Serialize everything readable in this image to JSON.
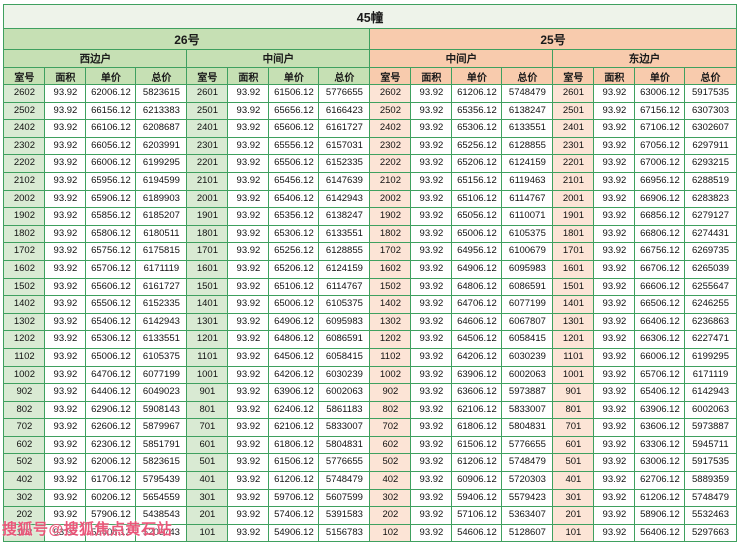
{
  "title": "45幢",
  "watermark": "搜狐号@搜狐焦点黄石站",
  "groups": [
    {
      "label": "26号",
      "units": [
        "西边户",
        "中间户"
      ]
    },
    {
      "label": "25号",
      "units": [
        "中间户",
        "东边户"
      ]
    }
  ],
  "columns": [
    "室号",
    "面积",
    "单价",
    "总价"
  ],
  "area": "93.92",
  "colors": {
    "border_green": "#3fa05f",
    "header_green": "#c6e0b4",
    "header_peach": "#f8cbad",
    "room_green": "#d9ead3",
    "room_peach": "#fce4d6",
    "watermark_pink": "#e94a70"
  },
  "rows": [
    [
      "2602",
      "93.92",
      "62006.12",
      "5823615",
      "2601",
      "93.92",
      "61506.12",
      "5776655",
      "2602",
      "93.92",
      "61206.12",
      "5748479",
      "2601",
      "93.92",
      "63006.12",
      "5917535"
    ],
    [
      "2502",
      "93.92",
      "66156.12",
      "6213383",
      "2501",
      "93.92",
      "65656.12",
      "6166423",
      "2502",
      "93.92",
      "65356.12",
      "6138247",
      "2501",
      "93.92",
      "67156.12",
      "6307303"
    ],
    [
      "2402",
      "93.92",
      "66106.12",
      "6208687",
      "2401",
      "93.92",
      "65606.12",
      "6161727",
      "2402",
      "93.92",
      "65306.12",
      "6133551",
      "2401",
      "93.92",
      "67106.12",
      "6302607"
    ],
    [
      "2302",
      "93.92",
      "66056.12",
      "6203991",
      "2301",
      "93.92",
      "65556.12",
      "6157031",
      "2302",
      "93.92",
      "65256.12",
      "6128855",
      "2301",
      "93.92",
      "67056.12",
      "6297911"
    ],
    [
      "2202",
      "93.92",
      "66006.12",
      "6199295",
      "2201",
      "93.92",
      "65506.12",
      "6152335",
      "2202",
      "93.92",
      "65206.12",
      "6124159",
      "2201",
      "93.92",
      "67006.12",
      "6293215"
    ],
    [
      "2102",
      "93.92",
      "65956.12",
      "6194599",
      "2101",
      "93.92",
      "65456.12",
      "6147639",
      "2102",
      "93.92",
      "65156.12",
      "6119463",
      "2101",
      "93.92",
      "66956.12",
      "6288519"
    ],
    [
      "2002",
      "93.92",
      "65906.12",
      "6189903",
      "2001",
      "93.92",
      "65406.12",
      "6142943",
      "2002",
      "93.92",
      "65106.12",
      "6114767",
      "2001",
      "93.92",
      "66906.12",
      "6283823"
    ],
    [
      "1902",
      "93.92",
      "65856.12",
      "6185207",
      "1901",
      "93.92",
      "65356.12",
      "6138247",
      "1902",
      "93.92",
      "65056.12",
      "6110071",
      "1901",
      "93.92",
      "66856.12",
      "6279127"
    ],
    [
      "1802",
      "93.92",
      "65806.12",
      "6180511",
      "1801",
      "93.92",
      "65306.12",
      "6133551",
      "1802",
      "93.92",
      "65006.12",
      "6105375",
      "1801",
      "93.92",
      "66806.12",
      "6274431"
    ],
    [
      "1702",
      "93.92",
      "65756.12",
      "6175815",
      "1701",
      "93.92",
      "65256.12",
      "6128855",
      "1702",
      "93.92",
      "64956.12",
      "6100679",
      "1701",
      "93.92",
      "66756.12",
      "6269735"
    ],
    [
      "1602",
      "93.92",
      "65706.12",
      "6171119",
      "1601",
      "93.92",
      "65206.12",
      "6124159",
      "1602",
      "93.92",
      "64906.12",
      "6095983",
      "1601",
      "93.92",
      "66706.12",
      "6265039"
    ],
    [
      "1502",
      "93.92",
      "65606.12",
      "6161727",
      "1501",
      "93.92",
      "65106.12",
      "6114767",
      "1502",
      "93.92",
      "64806.12",
      "6086591",
      "1501",
      "93.92",
      "66606.12",
      "6255647"
    ],
    [
      "1402",
      "93.92",
      "65506.12",
      "6152335",
      "1401",
      "93.92",
      "65006.12",
      "6105375",
      "1402",
      "93.92",
      "64706.12",
      "6077199",
      "1401",
      "93.92",
      "66506.12",
      "6246255"
    ],
    [
      "1302",
      "93.92",
      "65406.12",
      "6142943",
      "1301",
      "93.92",
      "64906.12",
      "6095983",
      "1302",
      "93.92",
      "64606.12",
      "6067807",
      "1301",
      "93.92",
      "66406.12",
      "6236863"
    ],
    [
      "1202",
      "93.92",
      "65306.12",
      "6133551",
      "1201",
      "93.92",
      "64806.12",
      "6086591",
      "1202",
      "93.92",
      "64506.12",
      "6058415",
      "1201",
      "93.92",
      "66306.12",
      "6227471"
    ],
    [
      "1102",
      "93.92",
      "65006.12",
      "6105375",
      "1101",
      "93.92",
      "64506.12",
      "6058415",
      "1102",
      "93.92",
      "64206.12",
      "6030239",
      "1101",
      "93.92",
      "66006.12",
      "6199295"
    ],
    [
      "1002",
      "93.92",
      "64706.12",
      "6077199",
      "1001",
      "93.92",
      "64206.12",
      "6030239",
      "1002",
      "93.92",
      "63906.12",
      "6002063",
      "1001",
      "93.92",
      "65706.12",
      "6171119"
    ],
    [
      "902",
      "93.92",
      "64406.12",
      "6049023",
      "901",
      "93.92",
      "63906.12",
      "6002063",
      "902",
      "93.92",
      "63606.12",
      "5973887",
      "901",
      "93.92",
      "65406.12",
      "6142943"
    ],
    [
      "802",
      "93.92",
      "62906.12",
      "5908143",
      "801",
      "93.92",
      "62406.12",
      "5861183",
      "802",
      "93.92",
      "62106.12",
      "5833007",
      "801",
      "93.92",
      "63906.12",
      "6002063"
    ],
    [
      "702",
      "93.92",
      "62606.12",
      "5879967",
      "701",
      "93.92",
      "62106.12",
      "5833007",
      "702",
      "93.92",
      "61806.12",
      "5804831",
      "701",
      "93.92",
      "63606.12",
      "5973887"
    ],
    [
      "602",
      "93.92",
      "62306.12",
      "5851791",
      "601",
      "93.92",
      "61806.12",
      "5804831",
      "602",
      "93.92",
      "61506.12",
      "5776655",
      "601",
      "93.92",
      "63306.12",
      "5945711"
    ],
    [
      "502",
      "93.92",
      "62006.12",
      "5823615",
      "501",
      "93.92",
      "61506.12",
      "5776655",
      "502",
      "93.92",
      "61206.12",
      "5748479",
      "501",
      "93.92",
      "63006.12",
      "5917535"
    ],
    [
      "402",
      "93.92",
      "61706.12",
      "5795439",
      "401",
      "93.92",
      "61206.12",
      "5748479",
      "402",
      "93.92",
      "60906.12",
      "5720303",
      "401",
      "93.92",
      "62706.12",
      "5889359"
    ],
    [
      "302",
      "93.92",
      "60206.12",
      "5654559",
      "301",
      "93.92",
      "59706.12",
      "5607599",
      "302",
      "93.92",
      "59406.12",
      "5579423",
      "301",
      "93.92",
      "61206.12",
      "5748479"
    ],
    [
      "202",
      "93.92",
      "57906.12",
      "5438543",
      "201",
      "93.92",
      "57406.12",
      "5391583",
      "202",
      "93.92",
      "57106.12",
      "5363407",
      "201",
      "93.92",
      "58906.12",
      "5532463"
    ],
    [
      "102",
      "93.92",
      "55406.12",
      "5203743",
      "101",
      "93.92",
      "54906.12",
      "5156783",
      "102",
      "93.92",
      "54606.12",
      "5128607",
      "101",
      "93.92",
      "56406.12",
      "5297663"
    ]
  ]
}
